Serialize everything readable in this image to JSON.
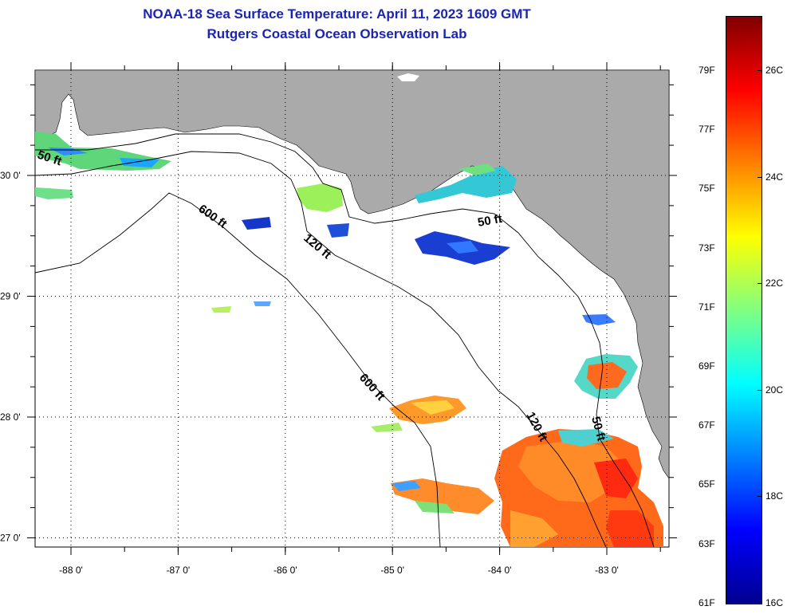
{
  "title": {
    "line1": "NOAA-18 Sea Surface Temperature:  April 11, 2023 1609 GMT",
    "line2": "Rutgers Coastal Ocean Observation Lab"
  },
  "map": {
    "lon_ticks": [
      {
        "value": -88,
        "label": "-88 0'"
      },
      {
        "value": -87,
        "label": "-87 0'"
      },
      {
        "value": -86,
        "label": "-86 0'"
      },
      {
        "value": -85,
        "label": "-85 0'"
      },
      {
        "value": -84,
        "label": "-84 0'"
      },
      {
        "value": -83,
        "label": "-83 0'"
      }
    ],
    "lat_ticks": [
      {
        "value": 30,
        "label": "30 0'"
      },
      {
        "value": 29,
        "label": "29 0'"
      },
      {
        "value": 28,
        "label": "28 0'"
      },
      {
        "value": 27,
        "label": "27 0'"
      }
    ],
    "contour_labels": {
      "fifty_west": "50 ft",
      "fifty_mid": "50 ft",
      "fifty_south": "50 ft",
      "onetwenty_north": "120 ft",
      "onetwenty_south": "120 ft",
      "sixhundred_north": "600 ft",
      "sixhundred_south": "600 ft"
    },
    "colors": {
      "land": "#aaaaaa",
      "water": "#ffffff",
      "grid": "#000000"
    }
  },
  "colorbar": {
    "fahrenheit": [
      "79F",
      "77F",
      "75F",
      "73F",
      "71F",
      "69F",
      "67F",
      "65F",
      "63F",
      "61F"
    ],
    "celsius": [
      "26C",
      "24C",
      "22C",
      "20C",
      "18C",
      "16C"
    ],
    "gradient": [
      "#00008f",
      "#0000ff",
      "#0080ff",
      "#00ffff",
      "#80ff80",
      "#ffff00",
      "#ff8000",
      "#ff0000",
      "#800000"
    ]
  }
}
